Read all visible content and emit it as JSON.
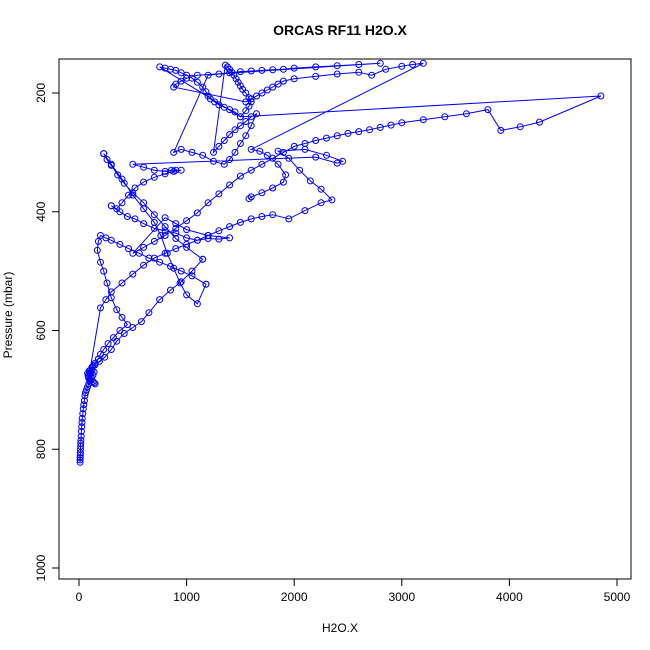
{
  "chart_data": {
    "type": "scatter",
    "title": "ORCAS RF11 H2O.X",
    "xlabel": "H2O.X",
    "ylabel": "Pressure (mbar)",
    "xlim": [
      -200,
      5000
    ],
    "ylim": [
      1000,
      150
    ],
    "y_reversed": true,
    "x_ticks": [
      0,
      1000,
      2000,
      3000,
      4000,
      5000
    ],
    "y_ticks": [
      200,
      400,
      600,
      800,
      1000
    ],
    "x_tick_labels": [
      "0",
      "1000",
      "2000",
      "3000",
      "4000",
      "5000"
    ],
    "y_tick_labels": [
      "200",
      "400",
      "600",
      "800",
      "1000"
    ],
    "marker": "open-circle",
    "color": "#0000ff",
    "connected": true,
    "grid": false,
    "points": [
      [
        10,
        822
      ],
      [
        10,
        818
      ],
      [
        11,
        814
      ],
      [
        12,
        810
      ],
      [
        13,
        806
      ],
      [
        14,
        800
      ],
      [
        15,
        795
      ],
      [
        16,
        790
      ],
      [
        18,
        785
      ],
      [
        20,
        778
      ],
      [
        22,
        770
      ],
      [
        25,
        762
      ],
      [
        28,
        755
      ],
      [
        30,
        748
      ],
      [
        35,
        740
      ],
      [
        40,
        732
      ],
      [
        45,
        725
      ],
      [
        50,
        718
      ],
      [
        55,
        710
      ],
      [
        60,
        705
      ],
      [
        70,
        700
      ],
      [
        80,
        695
      ],
      [
        90,
        690
      ],
      [
        100,
        685
      ],
      [
        115,
        680
      ],
      [
        130,
        675
      ],
      [
        140,
        670
      ],
      [
        120,
        668
      ],
      [
        100,
        672
      ],
      [
        90,
        678
      ],
      [
        110,
        684
      ],
      [
        140,
        688
      ],
      [
        150,
        690
      ],
      [
        130,
        686
      ],
      [
        100,
        682
      ],
      [
        85,
        676
      ],
      [
        80,
        672
      ],
      [
        95,
        668
      ],
      [
        120,
        662
      ],
      [
        150,
        658
      ],
      [
        190,
        652
      ],
      [
        240,
        645
      ],
      [
        300,
        632
      ],
      [
        350,
        618
      ],
      [
        420,
        605
      ],
      [
        500,
        595
      ],
      [
        580,
        585
      ],
      [
        650,
        570
      ],
      [
        750,
        548
      ],
      [
        850,
        532
      ],
      [
        950,
        518
      ],
      [
        1050,
        500
      ],
      [
        1150,
        480
      ],
      [
        1150,
        480
      ],
      [
        1000,
        460
      ],
      [
        900,
        445
      ],
      [
        800,
        425
      ],
      [
        700,
        405
      ],
      [
        600,
        385
      ],
      [
        500,
        368
      ],
      [
        420,
        352
      ],
      [
        360,
        338
      ],
      [
        300,
        322
      ],
      [
        260,
        312
      ],
      [
        230,
        302
      ],
      [
        230,
        302
      ],
      [
        300,
        320
      ],
      [
        400,
        345
      ],
      [
        500,
        372
      ],
      [
        600,
        395
      ],
      [
        700,
        418
      ],
      [
        760,
        440
      ],
      [
        820,
        470
      ],
      [
        880,
        495
      ],
      [
        940,
        520
      ],
      [
        1000,
        540
      ],
      [
        1100,
        555
      ],
      [
        1180,
        522
      ],
      [
        1180,
        522
      ],
      [
        1050,
        508
      ],
      [
        950,
        500
      ],
      [
        850,
        492
      ],
      [
        750,
        485
      ],
      [
        650,
        478
      ],
      [
        560,
        470
      ],
      [
        460,
        462
      ],
      [
        380,
        455
      ],
      [
        300,
        448
      ],
      [
        250,
        444
      ],
      [
        200,
        440
      ],
      [
        180,
        450
      ],
      [
        170,
        465
      ],
      [
        200,
        485
      ],
      [
        230,
        500
      ],
      [
        260,
        520
      ],
      [
        300,
        545
      ],
      [
        350,
        565
      ],
      [
        400,
        578
      ],
      [
        450,
        590
      ],
      [
        380,
        600
      ],
      [
        320,
        612
      ],
      [
        270,
        622
      ],
      [
        230,
        632
      ],
      [
        200,
        640
      ],
      [
        180,
        648
      ],
      [
        180,
        648
      ],
      [
        150,
        655
      ],
      [
        130,
        660
      ],
      [
        110,
        666
      ],
      [
        100,
        672
      ],
      [
        90,
        680
      ],
      [
        200,
        562
      ],
      [
        250,
        548
      ],
      [
        300,
        535
      ],
      [
        400,
        520
      ],
      [
        500,
        505
      ],
      [
        600,
        490
      ],
      [
        700,
        478
      ],
      [
        800,
        470
      ],
      [
        900,
        462
      ],
      [
        1000,
        455
      ],
      [
        1100,
        448
      ],
      [
        1200,
        440
      ],
      [
        1300,
        432
      ],
      [
        1400,
        425
      ],
      [
        1500,
        418
      ],
      [
        1600,
        412
      ],
      [
        1700,
        408
      ],
      [
        1800,
        405
      ],
      [
        1950,
        412
      ],
      [
        2100,
        398
      ],
      [
        2250,
        385
      ],
      [
        2350,
        380
      ],
      [
        2250,
        362
      ],
      [
        2150,
        348
      ],
      [
        2050,
        330
      ],
      [
        1950,
        310
      ],
      [
        1850,
        298
      ],
      [
        2100,
        295
      ],
      [
        2300,
        305
      ],
      [
        2450,
        315
      ],
      [
        2400,
        318
      ],
      [
        2200,
        308
      ],
      [
        500,
        320
      ],
      [
        600,
        325
      ],
      [
        700,
        330
      ],
      [
        800,
        332
      ],
      [
        860,
        330
      ],
      [
        900,
        330
      ],
      [
        950,
        330
      ],
      [
        880,
        332
      ],
      [
        800,
        336
      ],
      [
        700,
        342
      ],
      [
        600,
        350
      ],
      [
        520,
        360
      ],
      [
        460,
        372
      ],
      [
        400,
        385
      ],
      [
        350,
        395
      ],
      [
        300,
        390
      ],
      [
        300,
        390
      ],
      [
        380,
        400
      ],
      [
        450,
        408
      ],
      [
        520,
        412
      ],
      [
        600,
        420
      ],
      [
        700,
        428
      ],
      [
        800,
        432
      ],
      [
        900,
        436
      ],
      [
        1000,
        444
      ],
      [
        1100,
        448
      ],
      [
        1200,
        445
      ],
      [
        1300,
        446
      ],
      [
        1400,
        444
      ],
      [
        1200,
        440
      ],
      [
        1000,
        430
      ],
      [
        900,
        420
      ],
      [
        800,
        410
      ],
      [
        500,
        470
      ],
      [
        600,
        460
      ],
      [
        700,
        450
      ],
      [
        800,
        440
      ],
      [
        900,
        428
      ],
      [
        1000,
        415
      ],
      [
        1100,
        402
      ],
      [
        1200,
        385
      ],
      [
        1300,
        370
      ],
      [
        1400,
        355
      ],
      [
        1500,
        340
      ],
      [
        1600,
        330
      ],
      [
        1700,
        320
      ],
      [
        1800,
        310
      ],
      [
        1900,
        300
      ],
      [
        2000,
        290
      ],
      [
        2100,
        285
      ],
      [
        2200,
        280
      ],
      [
        2300,
        276
      ],
      [
        2400,
        272
      ],
      [
        2500,
        268
      ],
      [
        2600,
        265
      ],
      [
        2700,
        262
      ],
      [
        2800,
        258
      ],
      [
        2900,
        254
      ],
      [
        3000,
        250
      ],
      [
        3200,
        245
      ],
      [
        3400,
        240
      ],
      [
        3600,
        235
      ],
      [
        3800,
        228
      ],
      [
        3920,
        263
      ],
      [
        4100,
        257
      ],
      [
        4280,
        249
      ],
      [
        4850,
        205
      ],
      [
        1500,
        240
      ],
      [
        1450,
        232
      ],
      [
        1400,
        228
      ],
      [
        1350,
        224
      ],
      [
        1300,
        220
      ],
      [
        1260,
        215
      ],
      [
        1220,
        210
      ],
      [
        1200,
        205
      ],
      [
        1180,
        198
      ],
      [
        1150,
        190
      ],
      [
        1100,
        182
      ],
      [
        1050,
        175
      ],
      [
        1000,
        170
      ],
      [
        950,
        166
      ],
      [
        900,
        162
      ],
      [
        850,
        160
      ],
      [
        800,
        158
      ],
      [
        750,
        156
      ],
      [
        1500,
        240
      ],
      [
        1550,
        230
      ],
      [
        1580,
        222
      ],
      [
        1600,
        215
      ],
      [
        1580,
        208
      ],
      [
        1550,
        200
      ],
      [
        1520,
        194
      ],
      [
        1500,
        188
      ],
      [
        1480,
        182
      ],
      [
        1460,
        176
      ],
      [
        1440,
        170
      ],
      [
        1420,
        165
      ],
      [
        1400,
        160
      ],
      [
        1380,
        156
      ],
      [
        1360,
        153
      ],
      [
        1250,
        300
      ],
      [
        1300,
        290
      ],
      [
        1350,
        280
      ],
      [
        1400,
        270
      ],
      [
        1450,
        262
      ],
      [
        1500,
        255
      ],
      [
        1550,
        248
      ],
      [
        1600,
        240
      ],
      [
        1650,
        235
      ],
      [
        1600,
        255
      ],
      [
        1550,
        272
      ],
      [
        1500,
        285
      ],
      [
        1450,
        300
      ],
      [
        1400,
        312
      ],
      [
        1350,
        320
      ],
      [
        1250,
        315
      ],
      [
        1150,
        305
      ],
      [
        1050,
        300
      ],
      [
        950,
        295
      ],
      [
        880,
        300
      ],
      [
        1200,
        170
      ],
      [
        1300,
        168
      ],
      [
        1400,
        166
      ],
      [
        1500,
        164
      ],
      [
        1600,
        163
      ],
      [
        1700,
        162
      ],
      [
        1800,
        161
      ],
      [
        1900,
        160
      ],
      [
        2000,
        158
      ],
      [
        2200,
        156
      ],
      [
        2400,
        154
      ],
      [
        2600,
        152
      ],
      [
        2800,
        150
      ],
      [
        1100,
        170
      ],
      [
        1000,
        175
      ],
      [
        950,
        180
      ],
      [
        900,
        185
      ],
      [
        880,
        190
      ],
      [
        1550,
        215
      ],
      [
        1600,
        210
      ],
      [
        1650,
        205
      ],
      [
        1700,
        200
      ],
      [
        1750,
        195
      ],
      [
        1800,
        190
      ],
      [
        1850,
        185
      ],
      [
        1900,
        180
      ],
      [
        2000,
        176
      ],
      [
        2200,
        172
      ],
      [
        2400,
        168
      ],
      [
        2600,
        165
      ],
      [
        2720,
        170
      ],
      [
        2850,
        160
      ],
      [
        3000,
        155
      ],
      [
        3100,
        152
      ],
      [
        3200,
        150
      ],
      [
        1600,
        295
      ],
      [
        1680,
        298
      ],
      [
        1750,
        305
      ],
      [
        1850,
        320
      ],
      [
        1920,
        338
      ],
      [
        1900,
        350
      ],
      [
        1800,
        360
      ],
      [
        1700,
        368
      ],
      [
        1600,
        375
      ],
      [
        1580,
        378
      ]
    ]
  }
}
